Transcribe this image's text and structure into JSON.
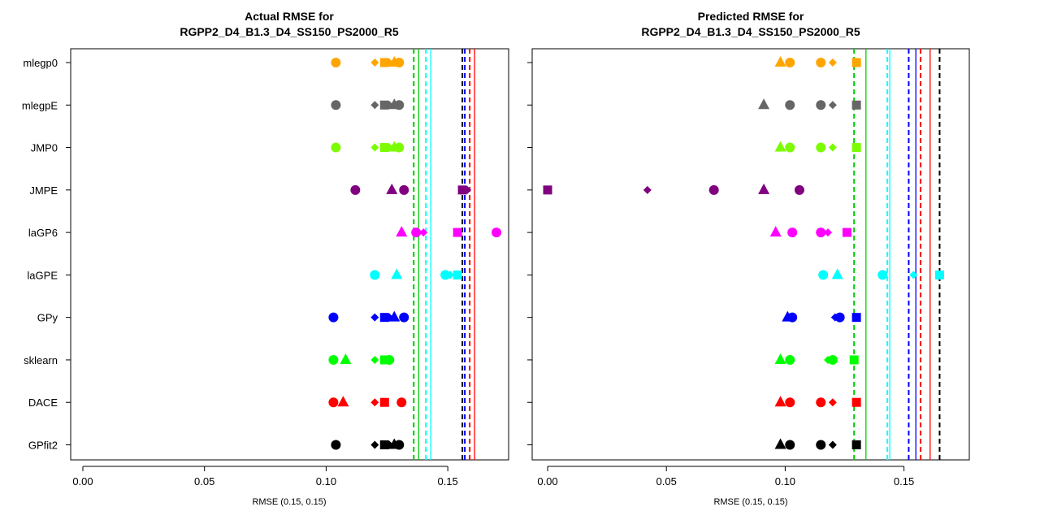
{
  "chart_data": [
    {
      "type": "scatter",
      "title_line1": "Actual RMSE for",
      "title_line2": "RGPP2_D4_B1.3_D4_SS150_PS2000_R5",
      "xlabel": "RMSE (0.15, 0.15)",
      "xlim": [
        -0.005,
        0.175
      ],
      "xticks": [
        "0.00",
        "0.05",
        "0.10",
        "0.15"
      ],
      "categories": [
        "mlegp0",
        "mlegpE",
        "JMP0",
        "JMPE",
        "laGP6",
        "laGPE",
        "GPy",
        "sklearn",
        "DACE",
        "GPfit2"
      ],
      "colors": {
        "mlegp0": "#FFA500",
        "mlegpE": "#666666",
        "JMP0": "#7CFC00",
        "JMPE": "#800080",
        "laGP6": "#FF00FF",
        "laGPE": "#00FFFF",
        "GPy": "#0000FF",
        "sklearn": "#00FF00",
        "DACE": "#FF0000",
        "GPfit2": "#000000"
      },
      "points": [
        {
          "cat": "mlegp0",
          "values": [
            {
              "x": 0.104,
              "shape": "circle"
            },
            {
              "x": 0.12,
              "shape": "diamond"
            },
            {
              "x": 0.124,
              "shape": "square"
            },
            {
              "x": 0.126,
              "shape": "diamond"
            },
            {
              "x": 0.128,
              "shape": "triangle"
            },
            {
              "x": 0.13,
              "shape": "circle"
            }
          ]
        },
        {
          "cat": "mlegpE",
          "values": [
            {
              "x": 0.104,
              "shape": "circle"
            },
            {
              "x": 0.12,
              "shape": "diamond"
            },
            {
              "x": 0.124,
              "shape": "square"
            },
            {
              "x": 0.126,
              "shape": "diamond"
            },
            {
              "x": 0.128,
              "shape": "triangle"
            },
            {
              "x": 0.13,
              "shape": "circle"
            }
          ]
        },
        {
          "cat": "JMP0",
          "values": [
            {
              "x": 0.104,
              "shape": "circle"
            },
            {
              "x": 0.12,
              "shape": "diamond"
            },
            {
              "x": 0.124,
              "shape": "square"
            },
            {
              "x": 0.126,
              "shape": "diamond"
            },
            {
              "x": 0.128,
              "shape": "triangle"
            },
            {
              "x": 0.13,
              "shape": "circle"
            }
          ]
        },
        {
          "cat": "JMPE",
          "values": [
            {
              "x": 0.112,
              "shape": "circle"
            },
            {
              "x": 0.127,
              "shape": "triangle"
            },
            {
              "x": 0.132,
              "shape": "circle"
            },
            {
              "x": 0.156,
              "shape": "square"
            },
            {
              "x": 0.158,
              "shape": "diamond"
            }
          ]
        },
        {
          "cat": "laGP6",
          "values": [
            {
              "x": 0.131,
              "shape": "triangle"
            },
            {
              "x": 0.137,
              "shape": "circle"
            },
            {
              "x": 0.14,
              "shape": "diamond"
            },
            {
              "x": 0.154,
              "shape": "square"
            },
            {
              "x": 0.17,
              "shape": "circle"
            }
          ]
        },
        {
          "cat": "laGPE",
          "values": [
            {
              "x": 0.12,
              "shape": "circle"
            },
            {
              "x": 0.129,
              "shape": "triangle"
            },
            {
              "x": 0.149,
              "shape": "circle"
            },
            {
              "x": 0.151,
              "shape": "diamond"
            },
            {
              "x": 0.154,
              "shape": "square"
            }
          ]
        },
        {
          "cat": "GPy",
          "values": [
            {
              "x": 0.103,
              "shape": "circle"
            },
            {
              "x": 0.12,
              "shape": "diamond"
            },
            {
              "x": 0.124,
              "shape": "square"
            },
            {
              "x": 0.126,
              "shape": "diamond"
            },
            {
              "x": 0.128,
              "shape": "triangle"
            },
            {
              "x": 0.132,
              "shape": "circle"
            }
          ]
        },
        {
          "cat": "sklearn",
          "values": [
            {
              "x": 0.103,
              "shape": "circle"
            },
            {
              "x": 0.108,
              "shape": "triangle"
            },
            {
              "x": 0.12,
              "shape": "diamond"
            },
            {
              "x": 0.124,
              "shape": "square"
            },
            {
              "x": 0.126,
              "shape": "circle"
            }
          ]
        },
        {
          "cat": "DACE",
          "values": [
            {
              "x": 0.103,
              "shape": "circle"
            },
            {
              "x": 0.107,
              "shape": "triangle"
            },
            {
              "x": 0.12,
              "shape": "diamond"
            },
            {
              "x": 0.124,
              "shape": "square"
            },
            {
              "x": 0.131,
              "shape": "circle"
            }
          ]
        },
        {
          "cat": "GPfit2",
          "values": [
            {
              "x": 0.104,
              "shape": "circle"
            },
            {
              "x": 0.12,
              "shape": "diamond"
            },
            {
              "x": 0.124,
              "shape": "square"
            },
            {
              "x": 0.126,
              "shape": "diamond"
            },
            {
              "x": 0.128,
              "shape": "triangle"
            },
            {
              "x": 0.13,
              "shape": "circle"
            }
          ]
        }
      ],
      "vlines": [
        {
          "x": 0.136,
          "color": "#00CC00",
          "style": "dashed"
        },
        {
          "x": 0.138,
          "color": "#00CC00",
          "style": "solid"
        },
        {
          "x": 0.141,
          "color": "#00FFFF",
          "style": "dashed"
        },
        {
          "x": 0.143,
          "color": "#00FFFF",
          "style": "solid"
        },
        {
          "x": 0.156,
          "color": "#000000",
          "style": "dashed"
        },
        {
          "x": 0.157,
          "color": "#0000FF",
          "style": "dashed"
        },
        {
          "x": 0.159,
          "color": "#FF0000",
          "style": "dashed"
        },
        {
          "x": 0.161,
          "color": "#FF0000",
          "style": "solid"
        }
      ]
    },
    {
      "type": "scatter",
      "title_line1": "Predicted RMSE for",
      "title_line2": "RGPP2_D4_B1.3_D4_SS150_PS2000_R5",
      "xlabel": "RMSE (0.15, 0.15)",
      "xlim": [
        -0.0065,
        0.1775
      ],
      "xticks": [
        "0.00",
        "0.05",
        "0.10",
        "0.15"
      ],
      "categories": [
        "mlegp0",
        "mlegpE",
        "JMP0",
        "JMPE",
        "laGP6",
        "laGPE",
        "GPy",
        "sklearn",
        "DACE",
        "GPfit2"
      ],
      "colors": {
        "mlegp0": "#FFA500",
        "mlegpE": "#666666",
        "JMP0": "#7CFC00",
        "JMPE": "#800080",
        "laGP6": "#FF00FF",
        "laGPE": "#00FFFF",
        "GPy": "#0000FF",
        "sklearn": "#00FF00",
        "DACE": "#FF0000",
        "GPfit2": "#000000"
      },
      "points": [
        {
          "cat": "mlegp0",
          "values": [
            {
              "x": 0.098,
              "shape": "triangle"
            },
            {
              "x": 0.102,
              "shape": "circle"
            },
            {
              "x": 0.115,
              "shape": "circle"
            },
            {
              "x": 0.12,
              "shape": "diamond"
            },
            {
              "x": 0.13,
              "shape": "square"
            }
          ]
        },
        {
          "cat": "mlegpE",
          "values": [
            {
              "x": 0.091,
              "shape": "triangle"
            },
            {
              "x": 0.102,
              "shape": "circle"
            },
            {
              "x": 0.115,
              "shape": "circle"
            },
            {
              "x": 0.12,
              "shape": "diamond"
            },
            {
              "x": 0.13,
              "shape": "square"
            }
          ]
        },
        {
          "cat": "JMP0",
          "values": [
            {
              "x": 0.098,
              "shape": "triangle"
            },
            {
              "x": 0.102,
              "shape": "circle"
            },
            {
              "x": 0.115,
              "shape": "circle"
            },
            {
              "x": 0.12,
              "shape": "diamond"
            },
            {
              "x": 0.13,
              "shape": "square"
            }
          ]
        },
        {
          "cat": "JMPE",
          "values": [
            {
              "x": 0.0,
              "shape": "square"
            },
            {
              "x": 0.042,
              "shape": "diamond"
            },
            {
              "x": 0.07,
              "shape": "circle"
            },
            {
              "x": 0.091,
              "shape": "triangle"
            },
            {
              "x": 0.106,
              "shape": "circle"
            }
          ]
        },
        {
          "cat": "laGP6",
          "values": [
            {
              "x": 0.096,
              "shape": "triangle"
            },
            {
              "x": 0.103,
              "shape": "circle"
            },
            {
              "x": 0.115,
              "shape": "circle"
            },
            {
              "x": 0.118,
              "shape": "diamond"
            },
            {
              "x": 0.126,
              "shape": "square"
            }
          ]
        },
        {
          "cat": "laGPE",
          "values": [
            {
              "x": 0.116,
              "shape": "circle"
            },
            {
              "x": 0.122,
              "shape": "triangle"
            },
            {
              "x": 0.141,
              "shape": "circle"
            },
            {
              "x": 0.154,
              "shape": "diamond"
            },
            {
              "x": 0.165,
              "shape": "square"
            }
          ]
        },
        {
          "cat": "GPy",
          "values": [
            {
              "x": 0.101,
              "shape": "triangle"
            },
            {
              "x": 0.103,
              "shape": "circle"
            },
            {
              "x": 0.121,
              "shape": "diamond"
            },
            {
              "x": 0.123,
              "shape": "circle"
            },
            {
              "x": 0.13,
              "shape": "square"
            }
          ]
        },
        {
          "cat": "sklearn",
          "values": [
            {
              "x": 0.098,
              "shape": "triangle"
            },
            {
              "x": 0.102,
              "shape": "circle"
            },
            {
              "x": 0.118,
              "shape": "diamond"
            },
            {
              "x": 0.12,
              "shape": "circle"
            },
            {
              "x": 0.129,
              "shape": "square"
            }
          ]
        },
        {
          "cat": "DACE",
          "values": [
            {
              "x": 0.098,
              "shape": "triangle"
            },
            {
              "x": 0.102,
              "shape": "circle"
            },
            {
              "x": 0.115,
              "shape": "circle"
            },
            {
              "x": 0.12,
              "shape": "diamond"
            },
            {
              "x": 0.13,
              "shape": "square"
            }
          ]
        },
        {
          "cat": "GPfit2",
          "values": [
            {
              "x": 0.098,
              "shape": "triangle"
            },
            {
              "x": 0.102,
              "shape": "circle"
            },
            {
              "x": 0.115,
              "shape": "circle"
            },
            {
              "x": 0.12,
              "shape": "diamond"
            },
            {
              "x": 0.13,
              "shape": "square"
            }
          ]
        }
      ],
      "vlines": [
        {
          "x": 0.129,
          "color": "#00CC00",
          "style": "dashed"
        },
        {
          "x": 0.134,
          "color": "#00CC00",
          "style": "solid"
        },
        {
          "x": 0.143,
          "color": "#00FFFF",
          "style": "dashed"
        },
        {
          "x": 0.144,
          "color": "#00FFFF",
          "style": "solid"
        },
        {
          "x": 0.152,
          "color": "#0000FF",
          "style": "dashed"
        },
        {
          "x": 0.155,
          "color": "#0000FF",
          "style": "solid"
        },
        {
          "x": 0.157,
          "color": "#FF0000",
          "style": "dashed"
        },
        {
          "x": 0.161,
          "color": "#FF0000",
          "style": "solid"
        },
        {
          "x": 0.165,
          "color": "#000000",
          "style": "dashed"
        }
      ]
    }
  ]
}
